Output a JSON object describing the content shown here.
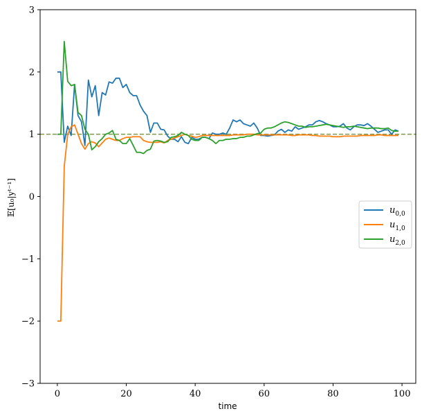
{
  "chart_data": {
    "type": "line",
    "xlabel": "time",
    "ylabel": "𝔼[u₀|yᵗ⁻¹]",
    "xlim": [
      -5,
      104
    ],
    "ylim": [
      -3,
      3
    ],
    "xticks": [
      0,
      20,
      40,
      60,
      80,
      100
    ],
    "yticks": [
      -3,
      -2,
      -1,
      0,
      1,
      2,
      3
    ],
    "xtick_labels": [
      "0",
      "20",
      "40",
      "60",
      "80",
      "100"
    ],
    "ytick_labels": [
      "−3",
      "−2",
      "−1",
      "0",
      "1",
      "2",
      "3"
    ],
    "grid": false,
    "legend_position": "center-right",
    "reference_line": {
      "y": 1.0,
      "style": "dashed",
      "color": "#7a9a4a"
    },
    "series": [
      {
        "name": "u0,0",
        "legend_base": "u",
        "legend_sub": "0,0",
        "color": "#1f77b4",
        "values": [
          2.0,
          2.0,
          0.87,
          1.13,
          0.98,
          1.8,
          1.3,
          1.2,
          0.82,
          1.87,
          1.6,
          1.78,
          1.3,
          1.67,
          1.63,
          1.84,
          1.82,
          1.9,
          1.9,
          1.75,
          1.8,
          1.67,
          1.62,
          1.62,
          1.47,
          1.37,
          1.3,
          1.03,
          1.18,
          1.18,
          1.08,
          1.07,
          0.97,
          0.92,
          0.92,
          0.88,
          0.96,
          0.87,
          0.85,
          0.95,
          0.92,
          0.92,
          0.95,
          0.95,
          0.93,
          1.02,
          1.0,
          1.0,
          1.02,
          1.0,
          1.1,
          1.23,
          1.2,
          1.23,
          1.17,
          1.15,
          1.13,
          1.18,
          1.1,
          0.98,
          0.98,
          0.97,
          0.98,
          0.99,
          1.05,
          1.08,
          1.03,
          1.07,
          1.05,
          1.12,
          1.08,
          1.1,
          1.12,
          1.15,
          1.15,
          1.2,
          1.22,
          1.2,
          1.17,
          1.15,
          1.12,
          1.12,
          1.13,
          1.17,
          1.1,
          1.07,
          1.12,
          1.15,
          1.15,
          1.14,
          1.17,
          1.13,
          1.08,
          1.03,
          1.05,
          1.07,
          1.07,
          1.0,
          1.07,
          1.05
        ]
      },
      {
        "name": "u1,0",
        "legend_base": "u",
        "legend_sub": "1,0",
        "color": "#ff7f0e",
        "values": [
          -2.0,
          -2.0,
          0.48,
          1.0,
          1.12,
          1.15,
          1.0,
          0.85,
          0.76,
          0.85,
          0.88,
          0.86,
          0.8,
          0.86,
          0.92,
          0.94,
          0.92,
          0.9,
          0.9,
          0.93,
          0.95,
          0.95,
          0.96,
          0.96,
          0.96,
          0.9,
          0.88,
          0.87,
          0.87,
          0.87,
          0.88,
          0.86,
          0.9,
          0.92,
          0.94,
          0.96,
          0.98,
          1.0,
          0.98,
          0.97,
          0.95,
          0.96,
          0.98,
          0.98,
          0.98,
          0.98,
          0.98,
          0.98,
          0.98,
          0.98,
          0.98,
          0.99,
          0.99,
          0.99,
          0.99,
          1.0,
          1.0,
          1.0,
          0.99,
          0.99,
          0.99,
          0.99,
          0.99,
          0.99,
          0.99,
          0.99,
          0.99,
          0.99,
          0.98,
          0.98,
          0.99,
          0.99,
          0.99,
          0.99,
          0.98,
          0.98,
          0.97,
          0.97,
          0.97,
          0.97,
          0.96,
          0.96,
          0.96,
          0.97,
          0.97,
          0.97,
          0.97,
          0.97,
          0.98,
          0.98,
          0.98,
          0.98,
          0.98,
          0.99,
          0.99,
          0.98,
          0.98,
          0.98,
          0.98,
          0.98
        ]
      },
      {
        "name": "u2,0",
        "legend_base": "u",
        "legend_sub": "2,0",
        "color": "#2ca02c",
        "values": [
          1.0,
          1.0,
          2.49,
          1.85,
          1.78,
          1.8,
          1.35,
          1.3,
          1.08,
          1.0,
          0.75,
          0.8,
          0.88,
          0.93,
          1.0,
          1.02,
          1.06,
          0.92,
          0.9,
          0.85,
          0.85,
          0.93,
          0.82,
          0.71,
          0.71,
          0.69,
          0.74,
          0.76,
          0.89,
          0.9,
          0.89,
          0.87,
          0.88,
          0.95,
          0.96,
          0.98,
          1.03,
          1.0,
          0.98,
          0.92,
          0.9,
          0.9,
          0.95,
          0.95,
          0.93,
          0.9,
          0.85,
          0.9,
          0.9,
          0.92,
          0.92,
          0.93,
          0.93,
          0.95,
          0.95,
          0.97,
          0.97,
          0.99,
          1.01,
          1.02,
          1.08,
          1.1,
          1.1,
          1.12,
          1.15,
          1.18,
          1.2,
          1.19,
          1.17,
          1.15,
          1.13,
          1.13,
          1.11,
          1.12,
          1.12,
          1.13,
          1.14,
          1.15,
          1.16,
          1.15,
          1.14,
          1.13,
          1.12,
          1.11,
          1.12,
          1.12,
          1.13,
          1.12,
          1.11,
          1.1,
          1.09,
          1.1,
          1.1,
          1.1,
          1.09,
          1.09,
          1.1,
          1.06,
          1.05,
          1.05
        ]
      }
    ]
  }
}
